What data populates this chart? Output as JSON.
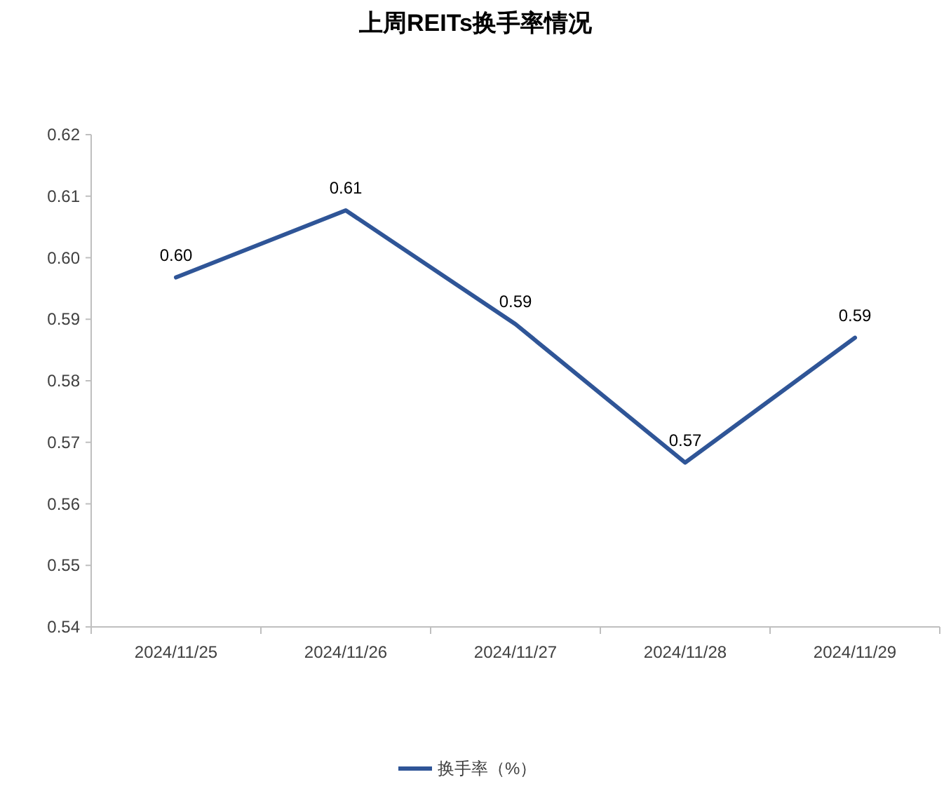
{
  "chart_data": {
    "type": "line",
    "title": "上周REITs换手率情况",
    "categories": [
      "2024/11/25",
      "2024/11/26",
      "2024/11/27",
      "2024/11/28",
      "2024/11/29"
    ],
    "series": [
      {
        "name": "换手率（%）",
        "color": "#2f5597",
        "values": [
          0.5968,
          0.6077,
          0.5892,
          0.5667,
          0.587
        ],
        "value_labels": [
          "0.60",
          "0.61",
          "0.59",
          "0.57",
          "0.59"
        ]
      }
    ],
    "ylim": [
      0.54,
      0.62
    ],
    "yticks": [
      {
        "value": 0.54,
        "label": "0.54"
      },
      {
        "value": 0.55,
        "label": "0.55"
      },
      {
        "value": 0.56,
        "label": "0.56"
      },
      {
        "value": 0.57,
        "label": "0.57"
      },
      {
        "value": 0.58,
        "label": "0.58"
      },
      {
        "value": 0.59,
        "label": "0.59"
      },
      {
        "value": 0.6,
        "label": "0.60"
      },
      {
        "value": 0.61,
        "label": "0.61"
      },
      {
        "value": 0.62,
        "label": "0.62"
      }
    ],
    "legend": "bottom"
  }
}
